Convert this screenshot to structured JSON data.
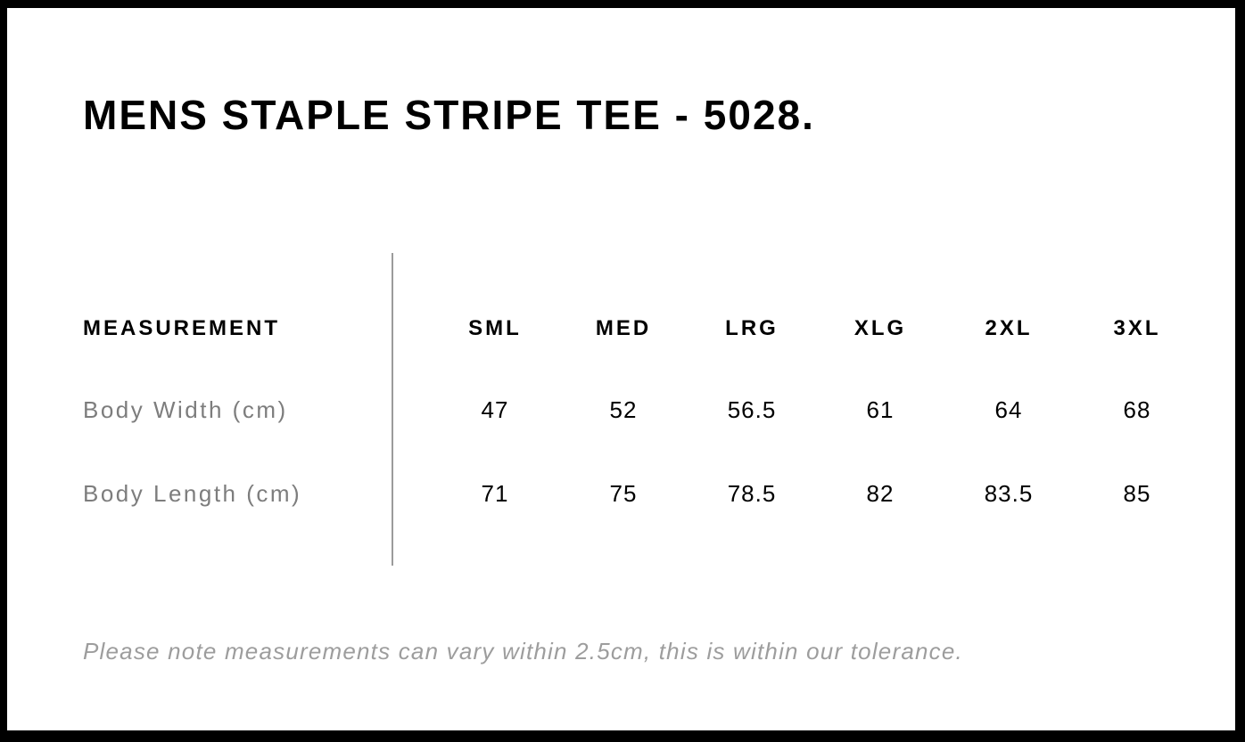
{
  "title": "MENS STAPLE STRIPE TEE - 5028.",
  "table": {
    "measurement_header": "MEASUREMENT",
    "size_headers": [
      "SML",
      "MED",
      "LRG",
      "XLG",
      "2XL",
      "3XL"
    ],
    "rows": [
      {
        "label": "Body Width (cm)",
        "values": [
          "47",
          "52",
          "56.5",
          "61",
          "64",
          "68"
        ]
      },
      {
        "label": "Body Length (cm)",
        "values": [
          "71",
          "75",
          "78.5",
          "82",
          "83.5",
          "85"
        ]
      }
    ]
  },
  "note": "Please note measurements can vary within 2.5cm, this is within our tolerance.",
  "colors": {
    "text_black": "#000000",
    "row_label_gray": "#7d7d7d",
    "note_gray": "#9d9d9d",
    "divider_gray": "#9b9b9b",
    "frame_black": "#000000",
    "background": "#ffffff"
  },
  "chart_data": {
    "type": "table",
    "title": "MENS STAPLE STRIPE TEE - 5028.",
    "columns": [
      "MEASUREMENT",
      "SML",
      "MED",
      "LRG",
      "XLG",
      "2XL",
      "3XL"
    ],
    "rows": [
      [
        "Body Width (cm)",
        47,
        52,
        56.5,
        61,
        64,
        68
      ],
      [
        "Body Length (cm)",
        71,
        75,
        78.5,
        82,
        83.5,
        85
      ]
    ],
    "note": "Please note measurements can vary within 2.5cm, this is within our tolerance.",
    "layout": "size chart; gray vertical divider between label column and size columns; black page frame"
  }
}
